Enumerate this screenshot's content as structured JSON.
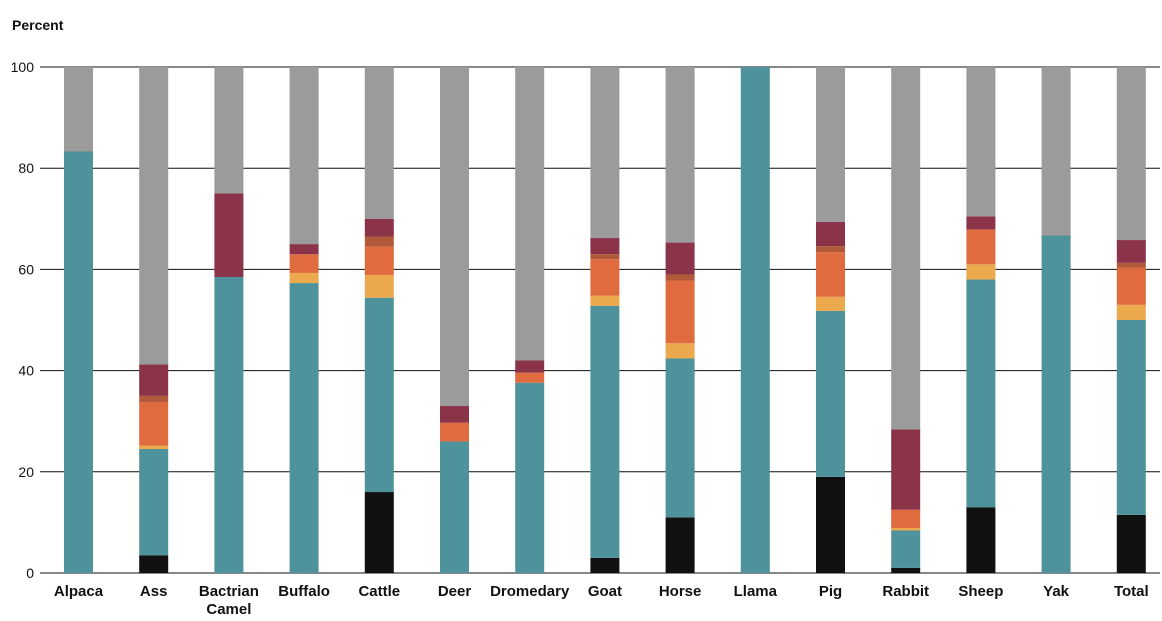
{
  "chart_data": {
    "type": "bar",
    "stacked": true,
    "title": "",
    "ylabel": "Percent",
    "xlabel": "",
    "ylim": [
      0,
      100
    ],
    "yticks": [
      0,
      20,
      40,
      60,
      80,
      100
    ],
    "grid": true,
    "categories": [
      "Alpaca",
      "Ass",
      "Bactrian Camel",
      "Buffalo",
      "Cattle",
      "Deer",
      "Dromedary",
      "Goat",
      "Horse",
      "Llama",
      "Pig",
      "Rabbit",
      "Sheep",
      "Yak",
      "Total"
    ],
    "series": [
      {
        "color": "#111111",
        "values": [
          0,
          3.5,
          0,
          0,
          16,
          0,
          0,
          3,
          11,
          0,
          19,
          1,
          13,
          0,
          11.5
        ]
      },
      {
        "color": "#4E929B",
        "values": [
          83.3,
          21,
          58.5,
          57.3,
          38.4,
          26,
          37.6,
          49.8,
          31.4,
          100,
          32.8,
          7.4,
          45,
          66.7,
          38.5
        ]
      },
      {
        "color": "#EBA84D",
        "values": [
          0,
          0.7,
          0,
          2,
          4.5,
          0,
          0,
          2,
          3,
          0,
          2.8,
          0.5,
          3,
          0,
          3
        ]
      },
      {
        "color": "#E06B3E",
        "values": [
          0,
          8.6,
          0,
          3.7,
          5.6,
          3.7,
          2,
          7.2,
          12.4,
          0,
          8.8,
          3.6,
          6.9,
          0,
          7.3
        ]
      },
      {
        "color": "#B15A3A",
        "values": [
          0,
          1.2,
          0,
          0,
          2,
          0,
          0,
          1,
          1.2,
          0,
          1.2,
          0,
          0,
          0,
          1
        ]
      },
      {
        "color": "#8A3349",
        "values": [
          0,
          6.2,
          16.5,
          2,
          3.5,
          3.3,
          2.4,
          3.2,
          6.3,
          0,
          4.8,
          15.9,
          2.6,
          0,
          4.5
        ]
      },
      {
        "color": "#9B9B9B",
        "values": [
          16.7,
          58.8,
          25,
          35,
          30,
          67,
          58,
          33.8,
          34.7,
          0,
          30.6,
          71.6,
          29.5,
          33.3,
          34.2
        ]
      }
    ]
  }
}
